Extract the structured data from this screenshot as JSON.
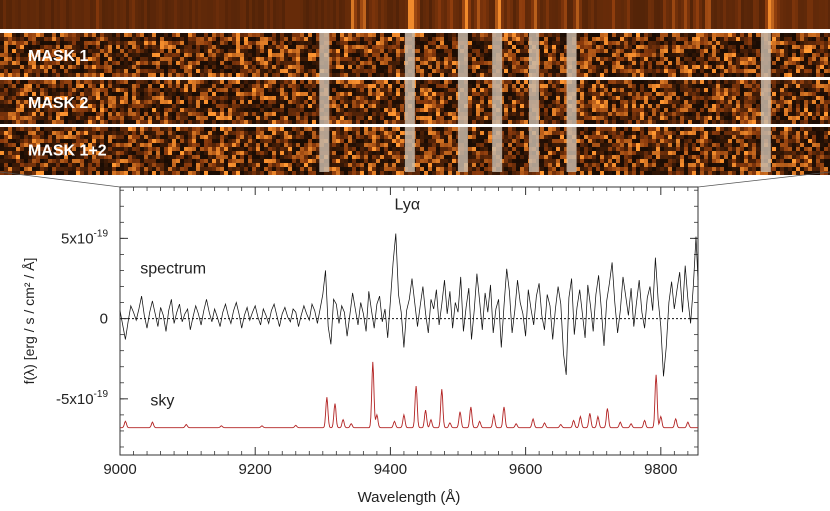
{
  "chart_data": {
    "type": "line",
    "xlabel": "Wavelength (Å)",
    "ylabel": "f(λ) [erg / s / cm² / Å]",
    "xlim": [
      9000,
      9855
    ],
    "ylim": [
      -8.5e-19,
      8.2e-19
    ],
    "x_ticks": [
      {
        "value": 9000,
        "label": "9000"
      },
      {
        "value": 9200,
        "label": "9200"
      },
      {
        "value": 9400,
        "label": "9400"
      },
      {
        "value": 9600,
        "label": "9600"
      },
      {
        "value": 9800,
        "label": "9800"
      }
    ],
    "y_ticks": [
      {
        "value": 5e-19,
        "base": "5x10",
        "exp": "-19"
      },
      {
        "value": 0,
        "base": "0",
        "exp": ""
      },
      {
        "value": -5e-19,
        "base": "-5x10",
        "exp": "-19"
      }
    ],
    "zero_line": {
      "y": 0,
      "style": "dotted"
    },
    "annotations": [
      {
        "text": "Lyα",
        "x": 9425,
        "y": 6.8e-19
      },
      {
        "text": "spectrum",
        "x": 9030,
        "y": 2.8e-19
      },
      {
        "text": "sky",
        "x": 9045,
        "y": -5.4e-19
      }
    ],
    "series": [
      {
        "name": "spectrum",
        "color": "#111111",
        "step": 4,
        "x": [
          9000,
          9004,
          9008,
          9012,
          9016,
          9020,
          9024,
          9028,
          9032,
          9036,
          9040,
          9044,
          9048,
          9052,
          9056,
          9060,
          9064,
          9068,
          9072,
          9076,
          9080,
          9084,
          9088,
          9092,
          9096,
          9100,
          9104,
          9108,
          9112,
          9116,
          9120,
          9124,
          9128,
          9132,
          9136,
          9140,
          9144,
          9148,
          9152,
          9156,
          9160,
          9164,
          9168,
          9172,
          9176,
          9180,
          9184,
          9188,
          9192,
          9196,
          9200,
          9204,
          9208,
          9212,
          9216,
          9220,
          9224,
          9228,
          9232,
          9236,
          9240,
          9244,
          9248,
          9252,
          9256,
          9260,
          9264,
          9268,
          9272,
          9276,
          9280,
          9284,
          9288,
          9292,
          9296,
          9300,
          9304,
          9308,
          9312,
          9316,
          9320,
          9324,
          9328,
          9332,
          9336,
          9340,
          9344,
          9348,
          9352,
          9356,
          9360,
          9364,
          9368,
          9372,
          9376,
          9380,
          9384,
          9388,
          9392,
          9396,
          9400,
          9404,
          9408,
          9412,
          9416,
          9420,
          9424,
          9428,
          9432,
          9436,
          9440,
          9444,
          9448,
          9452,
          9456,
          9460,
          9464,
          9468,
          9472,
          9476,
          9480,
          9484,
          9488,
          9492,
          9496,
          9500,
          9504,
          9508,
          9512,
          9516,
          9520,
          9524,
          9528,
          9532,
          9536,
          9540,
          9544,
          9548,
          9552,
          9556,
          9560,
          9564,
          9568,
          9572,
          9576,
          9580,
          9584,
          9588,
          9592,
          9596,
          9600,
          9604,
          9608,
          9612,
          9616,
          9620,
          9624,
          9628,
          9632,
          9636,
          9640,
          9644,
          9648,
          9652,
          9656,
          9660,
          9664,
          9668,
          9672,
          9676,
          9680,
          9684,
          9688,
          9692,
          9696,
          9700,
          9704,
          9708,
          9712,
          9716,
          9720,
          9724,
          9728,
          9732,
          9736,
          9740,
          9744,
          9748,
          9752,
          9756,
          9760,
          9764,
          9768,
          9772,
          9776,
          9780,
          9784,
          9788,
          9792,
          9796,
          9800,
          9804,
          9808,
          9812,
          9816,
          9820,
          9824,
          9828,
          9832,
          9836,
          9840,
          9844,
          9848,
          9852,
          9855
        ],
        "y": [
          0.5,
          -0.4,
          -1.3,
          -0.2,
          0.8,
          0.4,
          -0.1,
          0.6,
          1.4,
          0.2,
          -0.6,
          0.4,
          1.1,
          0.3,
          -0.5,
          0.7,
          0.2,
          -0.8,
          0.5,
          1.2,
          -0.3,
          0.4,
          0.9,
          -0.2,
          0.3,
          0.6,
          -0.7,
          0.1,
          0.8,
          0.3,
          -0.4,
          0.5,
          1.2,
          0.4,
          -0.2,
          0.6,
          0.1,
          -0.5,
          0.4,
          0.9,
          0.2,
          -0.3,
          0.5,
          1.0,
          0.3,
          -0.6,
          0.2,
          0.7,
          -0.1,
          0.4,
          0.8,
          0.1,
          -0.4,
          0.6,
          0.2,
          -0.3,
          0.5,
          0.9,
          0.2,
          -0.5,
          0.3,
          0.7,
          0.1,
          -0.2,
          0.6,
          0.4,
          -0.5,
          0.2,
          0.8,
          0.3,
          -0.1,
          0.9,
          0.5,
          -0.3,
          0.6,
          1.5,
          3.0,
          -0.5,
          -1.6,
          1.2,
          0.9,
          -0.3,
          0.8,
          0.4,
          -1.1,
          0.2,
          1.6,
          0.6,
          -0.4,
          1.0,
          0.3,
          -0.8,
          1.7,
          0.5,
          -0.6,
          0.9,
          1.4,
          -0.2,
          0.6,
          -1.2,
          1.1,
          3.5,
          5.3,
          1.5,
          0.4,
          -1.8,
          0.5,
          1.2,
          2.5,
          1.0,
          -0.5,
          0.8,
          2.0,
          0.3,
          -0.9,
          1.2,
          0.6,
          1.8,
          -0.4,
          0.9,
          2.4,
          0.3,
          1.7,
          -0.6,
          1.0,
          0.4,
          2.6,
          -0.8,
          0.7,
          1.9,
          -1.3,
          0.5,
          2.8,
          1.1,
          -0.7,
          1.6,
          0.4,
          2.1,
          -0.9,
          0.6,
          1.2,
          -1.8,
          0.8,
          3.1,
          1.7,
          -0.9,
          0.5,
          2.4,
          1.0,
          0.3,
          -1.1,
          1.8,
          0.6,
          -0.4,
          1.4,
          2.2,
          0.2,
          -0.7,
          1.5,
          0.8,
          -1.3,
          0.6,
          2.0,
          0.9,
          -2.2,
          -3.5,
          1.3,
          2.5,
          -1.0,
          0.7,
          1.8,
          0.3,
          -1.2,
          2.1,
          0.8,
          -0.8,
          1.5,
          2.7,
          0.6,
          -1.7,
          1.1,
          2.2,
          3.5,
          1.0,
          -0.9,
          0.5,
          2.6,
          1.4,
          0.2,
          1.9,
          -0.5,
          1.0,
          2.4,
          0.4,
          -0.6,
          1.3,
          2.0,
          0.5,
          3.8,
          1.2,
          -0.5,
          -3.6,
          -1.8,
          1.0,
          2.3,
          0.6,
          1.8,
          2.9,
          0.4,
          3.3,
          1.2,
          -0.3,
          2.0,
          5.1,
          2.4
        ]
      },
      {
        "name": "sky",
        "color": "#b22222",
        "base": -6.8,
        "continuum": [
          -6.8,
          -6.8
        ],
        "lines": [
          {
            "x": 9008,
            "h": 0.4
          },
          {
            "x": 9048,
            "h": 0.35
          },
          {
            "x": 9098,
            "h": 0.2
          },
          {
            "x": 9150,
            "h": 0.12
          },
          {
            "x": 9210,
            "h": 0.12
          },
          {
            "x": 9260,
            "h": 0.15
          },
          {
            "x": 9306,
            "h": 1.9
          },
          {
            "x": 9318,
            "h": 1.5
          },
          {
            "x": 9330,
            "h": 0.5
          },
          {
            "x": 9342,
            "h": 0.25
          },
          {
            "x": 9374,
            "h": 4.1
          },
          {
            "x": 9380,
            "h": 0.8
          },
          {
            "x": 9406,
            "h": 0.4
          },
          {
            "x": 9420,
            "h": 0.8
          },
          {
            "x": 9438,
            "h": 2.6
          },
          {
            "x": 9452,
            "h": 1.1
          },
          {
            "x": 9460,
            "h": 0.5
          },
          {
            "x": 9476,
            "h": 2.4
          },
          {
            "x": 9488,
            "h": 0.3
          },
          {
            "x": 9503,
            "h": 1.0
          },
          {
            "x": 9519,
            "h": 1.3
          },
          {
            "x": 9532,
            "h": 0.4
          },
          {
            "x": 9553,
            "h": 0.8
          },
          {
            "x": 9568,
            "h": 1.3
          },
          {
            "x": 9586,
            "h": 0.25
          },
          {
            "x": 9611,
            "h": 0.55
          },
          {
            "x": 9628,
            "h": 0.3
          },
          {
            "x": 9652,
            "h": 0.2
          },
          {
            "x": 9671,
            "h": 0.45
          },
          {
            "x": 9681,
            "h": 0.7
          },
          {
            "x": 9695,
            "h": 0.9
          },
          {
            "x": 9707,
            "h": 0.7
          },
          {
            "x": 9721,
            "h": 1.2
          },
          {
            "x": 9740,
            "h": 0.35
          },
          {
            "x": 9756,
            "h": 0.25
          },
          {
            "x": 9776,
            "h": 0.45
          },
          {
            "x": 9793,
            "h": 3.3
          },
          {
            "x": 9800,
            "h": 0.7
          },
          {
            "x": 9822,
            "h": 0.55
          },
          {
            "x": 9840,
            "h": 0.35
          }
        ]
      }
    ],
    "spectrum_panels": [
      {
        "label": "",
        "kind": "sky2d"
      },
      {
        "label": "MASK 1",
        "kind": "noise"
      },
      {
        "label": "MASK 2",
        "kind": "noise"
      },
      {
        "label": "MASK 1+2",
        "kind": "noise"
      }
    ],
    "masked_skylines_x": [
      9274,
      9374,
      9436,
      9476,
      9519,
      9563,
      9790
    ],
    "colors": {
      "frame": "#333333",
      "noise_dark": "#1a0c04",
      "noise_mid": "#8a3a0c",
      "noise_bright": "#f08a2c",
      "mask_stripe": "#c8b8a8",
      "separator": "#ffffff"
    }
  }
}
